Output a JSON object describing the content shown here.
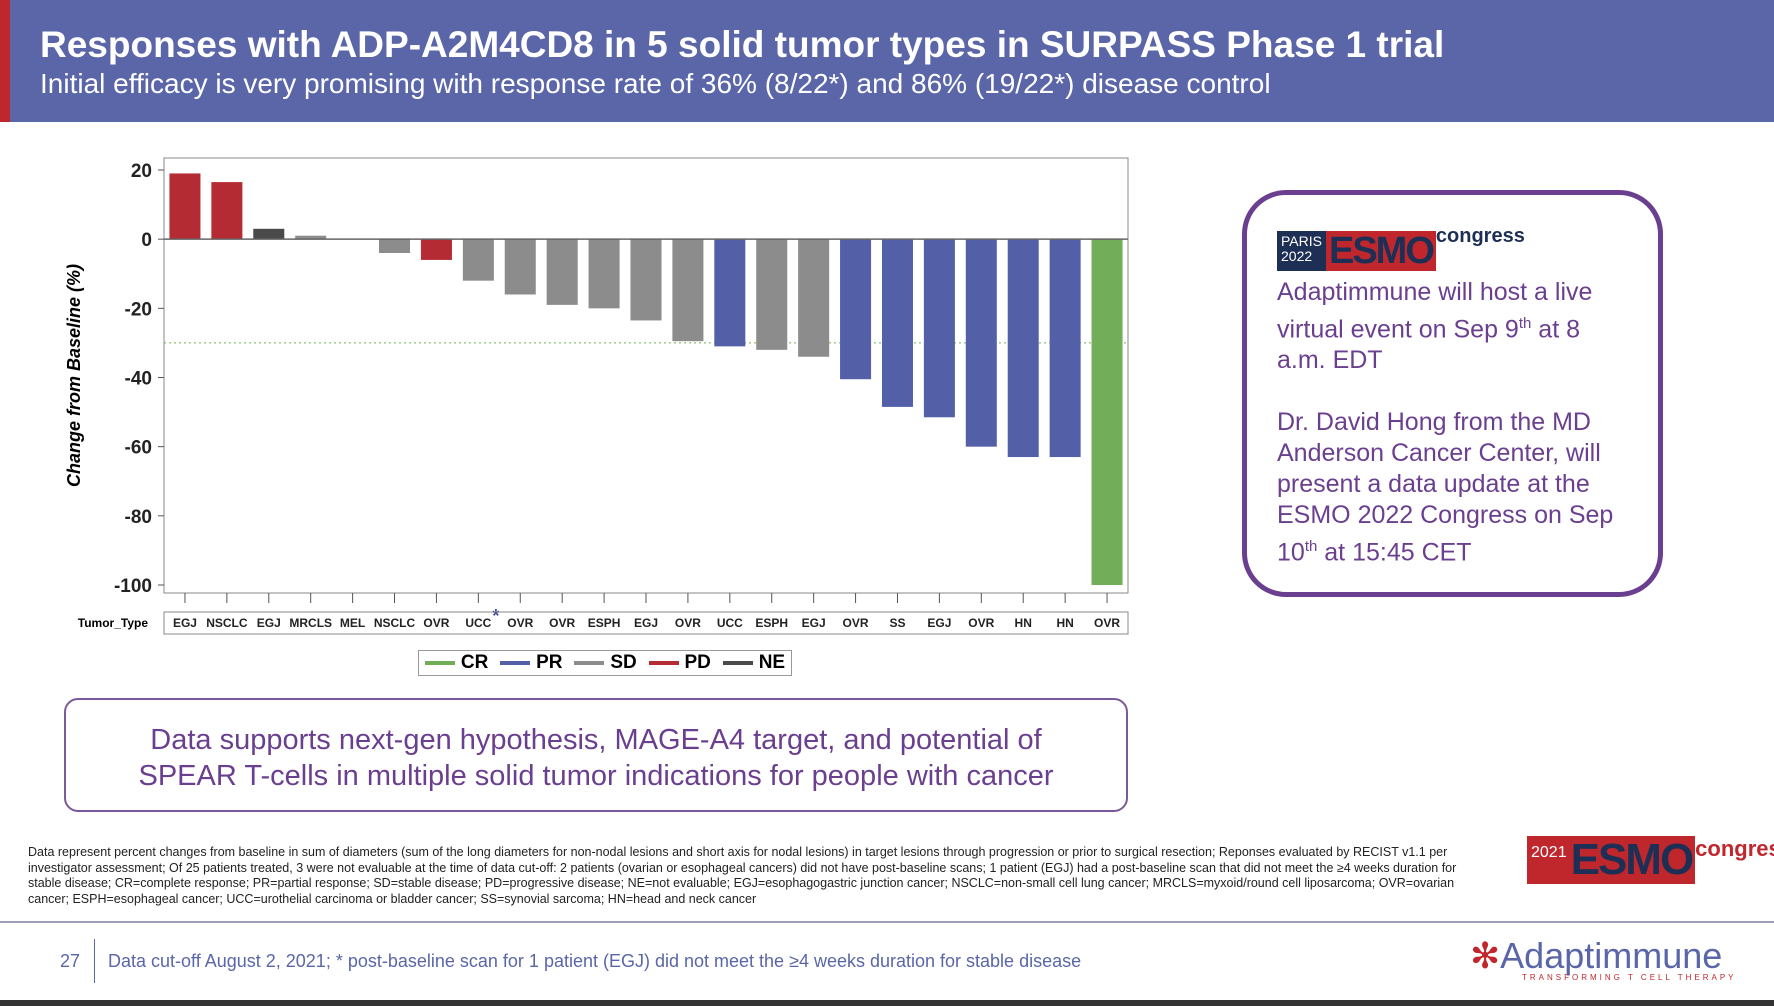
{
  "header": {
    "title": "Responses with ADP-A2M4CD8 in 5 solid tumor types in SURPASS Phase 1 trial",
    "subtitle": "Initial efficacy is very promising with response rate of 36% (8/22*) and 86% (19/22*) disease control"
  },
  "chart_data": {
    "type": "bar",
    "ylabel": "Change from Baseline (%)",
    "xlabel": "Tumor_Type",
    "ylim": [
      -100,
      20
    ],
    "yticks": [
      20,
      0,
      -20,
      -40,
      -60,
      -80,
      -100
    ],
    "reference_line": -30,
    "grid": false,
    "legend_position": "bottom",
    "categories": [
      "EGJ",
      "NSCLC",
      "EGJ",
      "MRCLS",
      "MEL",
      "NSCLC",
      "OVR",
      "UCC",
      "OVR",
      "OVR",
      "ESPH",
      "EGJ",
      "OVR",
      "UCC",
      "ESPH",
      "EGJ",
      "OVR",
      "SS",
      "EGJ",
      "OVR",
      "HN",
      "HN",
      "OVR"
    ],
    "values": [
      19,
      16.5,
      3,
      1,
      0,
      -4,
      -6,
      -12,
      -16,
      -19,
      -20,
      -23.5,
      -29.5,
      -31,
      -32,
      -34,
      -40.5,
      -48.5,
      -51.5,
      -60,
      -63,
      -63,
      -100
    ],
    "response": [
      "PD",
      "PD",
      "NE",
      "SD",
      "SD",
      "SD",
      "PD",
      "SD",
      "SD",
      "SD",
      "SD",
      "SD",
      "SD",
      "PR",
      "SD",
      "SD",
      "PR",
      "PR",
      "PR",
      "PR",
      "PR",
      "PR",
      "CR"
    ],
    "asterisk_category_index": 7,
    "legend": [
      {
        "name": "CR",
        "color": "#72ad5a"
      },
      {
        "name": "PR",
        "color": "#5360a8"
      },
      {
        "name": "SD",
        "color": "#8c8c8c"
      },
      {
        "name": "PD",
        "color": "#b52b33"
      },
      {
        "name": "NE",
        "color": "#4a4a4a"
      }
    ]
  },
  "callout": {
    "line1": "Data supports next-gen hypothesis, MAGE-A4 target, and potential of",
    "line2": "SPEAR T-cells in multiple solid tumor indications for people with cancer"
  },
  "event_box": {
    "logo_city": "PARIS",
    "logo_year": "2022",
    "logo_word": "ESMO",
    "logo_congress": "congress",
    "p1a": "Adaptimmune will host a live virtual event on Sep 9",
    "p1sup": "th",
    "p1b": " at 8 a.m. EDT",
    "p2a": "Dr. David Hong from the MD Anderson Cancer Center, will present a data update at the ESMO 2022 Congress on Sep 10",
    "p2sup": "th",
    "p2b": " at 15:45 CET"
  },
  "footnote": "Data represent percent changes from baseline in sum of diameters (sum of the long diameters for non-nodal lesions and short axis for nodal lesions) in target lesions through progression or prior to surgical resection; Reponses evaluated by RECIST v1.1 per investigator assessment; Of 25 patients treated, 3 were not evaluable at the time of data cut-off: 2 patients (ovarian or esophageal cancers) did not have post-baseline scans; 1 patient (EGJ) had a post-baseline scan that did not meet the ≥4 weeks duration for stable disease; CR=complete response; PR=partial response; SD=stable disease; PD=progressive disease; NE=not evaluable; EGJ=esophagogastric junction cancer; NSCLC=non-small cell lung cancer; MRCLS=myxoid/round cell liposarcoma; OVR=ovarian cancer; ESPH=esophageal cancer; UCC=urothelial carcinoma or bladder cancer; SS=synovial sarcoma; HN=head and neck cancer",
  "esmo2021": {
    "year": "2021",
    "word": "ESMO",
    "congress": "congress"
  },
  "footer": {
    "page": "27",
    "cutoff": "Data cut-off August 2, 2021; * post-baseline scan for 1 patient (EGJ) did not meet the ≥4 weeks duration for stable disease",
    "logo": "Adaptimmune",
    "tagline": "TRANSFORMING T CELL THERAPY"
  }
}
